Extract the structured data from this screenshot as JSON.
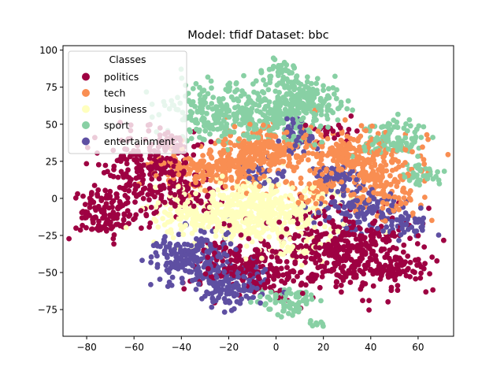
{
  "chart_data": {
    "type": "scatter",
    "title": "Model: tfidf       Dataset: bbc",
    "xlabel": "",
    "ylabel": "",
    "xlim": [
      -90,
      75
    ],
    "ylim": [
      -93,
      103
    ],
    "x_ticks": [
      -80,
      -60,
      -40,
      -20,
      0,
      20,
      40,
      60
    ],
    "y_ticks": [
      -75,
      -50,
      -25,
      0,
      25,
      50,
      75,
      100
    ],
    "grid": false,
    "legend": {
      "title": "Classes",
      "placement": "top-left"
    },
    "series": [
      {
        "name": "politics",
        "color": "#9e0142",
        "clusters": [
          {
            "cx": -72,
            "cy": -10,
            "sx": 8,
            "sy": 8,
            "n": 140
          },
          {
            "cx": -55,
            "cy": 18,
            "sx": 10,
            "sy": 12,
            "n": 200
          },
          {
            "cx": -45,
            "cy": 35,
            "sx": 6,
            "sy": 6,
            "n": 50
          },
          {
            "cx": 30,
            "cy": -35,
            "sx": 14,
            "sy": 14,
            "n": 380
          },
          {
            "cx": 50,
            "cy": -48,
            "sx": 7,
            "sy": 6,
            "n": 70
          },
          {
            "cx": -10,
            "cy": -45,
            "sx": 12,
            "sy": 10,
            "n": 220
          },
          {
            "cx": -35,
            "cy": 0,
            "sx": 6,
            "sy": 6,
            "n": 60
          },
          {
            "cx": 25,
            "cy": 45,
            "sx": 4,
            "sy": 4,
            "n": 25
          }
        ]
      },
      {
        "name": "tech",
        "color": "#f98e52",
        "clusters": [
          {
            "cx": -25,
            "cy": 20,
            "sx": 12,
            "sy": 8,
            "n": 230
          },
          {
            "cx": -5,
            "cy": 32,
            "sx": 10,
            "sy": 7,
            "n": 200
          },
          {
            "cx": 32,
            "cy": 28,
            "sx": 13,
            "sy": 9,
            "n": 260
          },
          {
            "cx": 45,
            "cy": 5,
            "sx": 8,
            "sy": 10,
            "n": 120
          },
          {
            "cx": 18,
            "cy": 5,
            "sx": 6,
            "sy": 6,
            "n": 60
          }
        ]
      },
      {
        "name": "business",
        "color": "#ffffbe",
        "clusters": [
          {
            "cx": -8,
            "cy": -10,
            "sx": 16,
            "sy": 10,
            "n": 520
          },
          {
            "cx": -38,
            "cy": -12,
            "sx": 7,
            "sy": 7,
            "n": 60
          },
          {
            "cx": 10,
            "cy": -35,
            "sx": 5,
            "sy": 5,
            "n": 30
          }
        ]
      },
      {
        "name": "sport",
        "color": "#88d0a4",
        "clusters": [
          {
            "cx": -20,
            "cy": 58,
            "sx": 13,
            "sy": 9,
            "n": 280
          },
          {
            "cx": 5,
            "cy": 60,
            "sx": 9,
            "sy": 11,
            "n": 180
          },
          {
            "cx": 15,
            "cy": 65,
            "sx": 7,
            "sy": 7,
            "n": 90
          },
          {
            "cx": 50,
            "cy": 40,
            "sx": 7,
            "sy": 8,
            "n": 90
          },
          {
            "cx": 62,
            "cy": 15,
            "sx": 5,
            "sy": 4,
            "n": 35
          },
          {
            "cx": 5,
            "cy": -70,
            "sx": 6,
            "sy": 5,
            "n": 70
          },
          {
            "cx": 0,
            "cy": 87,
            "sx": 4,
            "sy": 3,
            "n": 30
          },
          {
            "cx": 18,
            "cy": -84,
            "sx": 2,
            "sy": 1.5,
            "n": 8
          }
        ]
      },
      {
        "name": "entertainment",
        "color": "#5e4fa2",
        "clusters": [
          {
            "cx": -35,
            "cy": -40,
            "sx": 9,
            "sy": 9,
            "n": 210
          },
          {
            "cx": -18,
            "cy": -58,
            "sx": 8,
            "sy": 8,
            "n": 140
          },
          {
            "cx": 35,
            "cy": -8,
            "sx": 9,
            "sy": 7,
            "n": 130
          },
          {
            "cx": 25,
            "cy": 15,
            "sx": 5,
            "sy": 4,
            "n": 50
          },
          {
            "cx": 8,
            "cy": 40,
            "sx": 5,
            "sy": 6,
            "n": 60
          },
          {
            "cx": 55,
            "cy": -18,
            "sx": 5,
            "sy": 5,
            "n": 40
          },
          {
            "cx": -5,
            "cy": 15,
            "sx": 5,
            "sy": 4,
            "n": 30
          }
        ]
      }
    ]
  }
}
